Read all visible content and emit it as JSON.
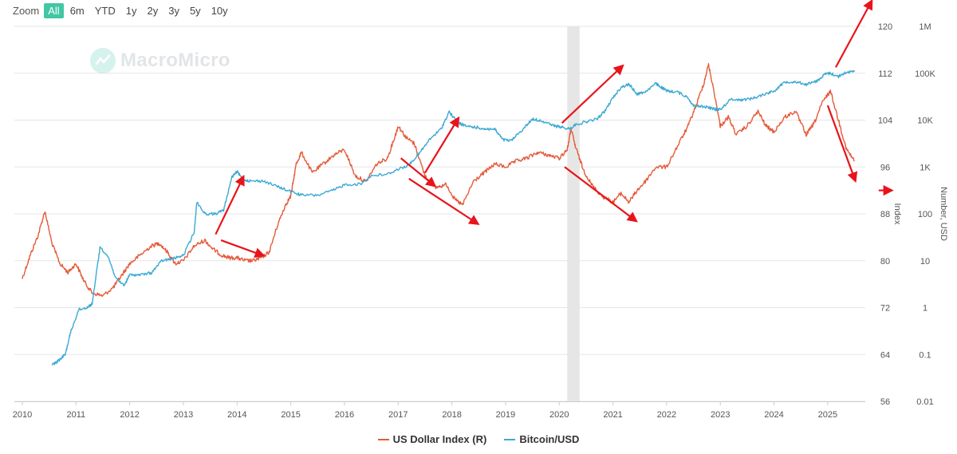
{
  "zoom": {
    "label": "Zoom",
    "buttons": [
      "All",
      "6m",
      "YTD",
      "1y",
      "2y",
      "3y",
      "5y",
      "10y"
    ],
    "selected": "All"
  },
  "watermark": {
    "text": "MacroMicro",
    "icon": "macromicro-logo-icon"
  },
  "colors": {
    "dxy": "#e45b3a",
    "btc": "#3ba9d3",
    "arrow": "#e8141b",
    "recession": "#e6e6e6",
    "active_zoom": "#41c7a5"
  },
  "legend": [
    {
      "label": "US Dollar Index (R)",
      "color": "#e45b3a"
    },
    {
      "label": "Bitcoin/USD",
      "color": "#3ba9d3"
    }
  ],
  "chart_data": {
    "type": "line",
    "x_axis": {
      "ticks": [
        "2010",
        "2011",
        "2012",
        "2013",
        "2014",
        "2015",
        "2016",
        "2017",
        "2018",
        "2019",
        "2020",
        "2021",
        "2022",
        "2023",
        "2024",
        "2025"
      ],
      "range": [
        2010.0,
        2025.7
      ]
    },
    "y_axis_index": {
      "label": "Index",
      "ticks": [
        "120",
        "112",
        "104",
        "96",
        "88",
        "80",
        "72",
        "64",
        "56"
      ],
      "range": [
        56,
        120
      ]
    },
    "y_axis_usd": {
      "label": "Number, USD",
      "scale": "log",
      "ticks": [
        "1M",
        "100K",
        "10K",
        "1K",
        "100",
        "10",
        "1",
        "0.1",
        "0.01"
      ],
      "range": [
        0.01,
        1000000
      ]
    },
    "shaded_period": {
      "label": "recession",
      "x_start": 2020.15,
      "x_end": 2020.38
    },
    "grid": true,
    "legend_position": "bottom-center",
    "series": [
      {
        "name": "US Dollar Index (R)",
        "axis": "index",
        "x": [
          2010.0,
          2010.15,
          2010.3,
          2010.42,
          2010.55,
          2010.7,
          2010.85,
          2011.0,
          2011.15,
          2011.3,
          2011.5,
          2011.7,
          2011.85,
          2012.0,
          2012.2,
          2012.4,
          2012.55,
          2012.7,
          2012.85,
          2013.0,
          2013.2,
          2013.4,
          2013.55,
          2013.7,
          2013.85,
          2014.0,
          2014.15,
          2014.3,
          2014.45,
          2014.6,
          2014.75,
          2014.9,
          2015.0,
          2015.1,
          2015.2,
          2015.4,
          2015.6,
          2015.8,
          2016.0,
          2016.2,
          2016.4,
          2016.6,
          2016.8,
          2016.95,
          2017.0,
          2017.15,
          2017.3,
          2017.5,
          2017.7,
          2017.9,
          2018.05,
          2018.2,
          2018.4,
          2018.6,
          2018.8,
          2019.0,
          2019.2,
          2019.4,
          2019.6,
          2019.8,
          2020.0,
          2020.15,
          2020.22,
          2020.3,
          2020.45,
          2020.6,
          2020.8,
          2021.0,
          2021.15,
          2021.3,
          2021.45,
          2021.6,
          2021.8,
          2022.0,
          2022.2,
          2022.4,
          2022.55,
          2022.7,
          2022.78,
          2022.9,
          2023.0,
          2023.15,
          2023.3,
          2023.5,
          2023.7,
          2023.85,
          2024.0,
          2024.2,
          2024.4,
          2024.6,
          2024.75,
          2024.9,
          2025.05,
          2025.2,
          2025.35,
          2025.5
        ],
        "y": [
          77.0,
          81.0,
          84.5,
          88.5,
          83.0,
          79.5,
          78.0,
          79.5,
          76.5,
          74.5,
          74.0,
          75.5,
          77.5,
          79.5,
          81.0,
          82.5,
          83.0,
          81.5,
          79.5,
          80.0,
          82.5,
          83.5,
          82.0,
          81.0,
          80.5,
          80.5,
          80.0,
          80.0,
          80.5,
          81.5,
          86.0,
          89.5,
          91.0,
          96.5,
          98.5,
          95.0,
          96.5,
          98.0,
          99.0,
          94.5,
          93.5,
          96.5,
          97.5,
          101.5,
          103.0,
          101.0,
          100.0,
          94.5,
          92.5,
          93.0,
          90.5,
          89.5,
          93.5,
          95.0,
          96.5,
          96.0,
          97.0,
          97.5,
          98.5,
          98.0,
          97.5,
          99.0,
          102.5,
          99.5,
          95.5,
          93.0,
          91.0,
          90.0,
          91.5,
          90.0,
          92.0,
          93.5,
          96.0,
          96.0,
          99.5,
          103.0,
          106.5,
          110.5,
          113.5,
          108.0,
          103.0,
          104.5,
          101.5,
          103.0,
          105.5,
          103.0,
          102.0,
          104.5,
          105.5,
          101.5,
          103.5,
          107.0,
          109.0,
          104.0,
          99.0,
          97.0
        ]
      },
      {
        "name": "Bitcoin/USD",
        "axis": "usd_log",
        "x": [
          2010.55,
          2010.65,
          2010.8,
          2010.9,
          2011.05,
          2011.2,
          2011.3,
          2011.4,
          2011.45,
          2011.6,
          2011.75,
          2011.9,
          2012.0,
          2012.2,
          2012.4,
          2012.6,
          2012.8,
          2013.0,
          2013.2,
          2013.25,
          2013.4,
          2013.6,
          2013.75,
          2013.9,
          2014.0,
          2014.1,
          2014.25,
          2014.5,
          2014.75,
          2015.0,
          2015.2,
          2015.5,
          2015.8,
          2016.0,
          2016.3,
          2016.5,
          2016.8,
          2017.0,
          2017.2,
          2017.4,
          2017.6,
          2017.8,
          2017.95,
          2018.1,
          2018.25,
          2018.45,
          2018.6,
          2018.8,
          2018.95,
          2019.1,
          2019.3,
          2019.5,
          2019.7,
          2019.9,
          2020.0,
          2020.2,
          2020.3,
          2020.5,
          2020.7,
          2020.85,
          2021.0,
          2021.15,
          2021.3,
          2021.45,
          2021.6,
          2021.8,
          2021.9,
          2022.0,
          2022.2,
          2022.4,
          2022.5,
          2022.7,
          2022.9,
          2023.0,
          2023.2,
          2023.4,
          2023.6,
          2023.8,
          2024.0,
          2024.2,
          2024.4,
          2024.6,
          2024.8,
          2024.95,
          2025.05,
          2025.2,
          2025.35,
          2025.5
        ],
        "y": [
          0.06,
          0.07,
          0.1,
          0.3,
          0.9,
          1.0,
          1.2,
          8.0,
          20.0,
          12.0,
          4.0,
          3.0,
          5.0,
          5.0,
          5.5,
          10.0,
          11.0,
          13.0,
          40.0,
          180.0,
          100.0,
          100.0,
          120.0,
          600.0,
          800.0,
          550.0,
          500.0,
          500.0,
          380.0,
          300.0,
          250.0,
          250.0,
          320.0,
          420.0,
          430.0,
          650.0,
          700.0,
          900.0,
          1100.0,
          2000.0,
          4000.0,
          6500.0,
          15000.0,
          9000.0,
          7500.0,
          7000.0,
          6500.0,
          6400.0,
          3800.0,
          3600.0,
          6000.0,
          10500.0,
          9500.0,
          7500.0,
          7200.0,
          6500.0,
          8000.0,
          9200.0,
          10500.0,
          15500.0,
          30000.0,
          50000.0,
          58000.0,
          36000.0,
          40000.0,
          60000.0,
          50000.0,
          42000.0,
          40000.0,
          30000.0,
          20000.0,
          19500.0,
          17000.0,
          17000.0,
          28000.0,
          27000.0,
          29000.0,
          35000.0,
          42000.0,
          65000.0,
          66000.0,
          58000.0,
          68000.0,
          95000.0,
          100000.0,
          85000.0,
          105000.0,
          108000.0
        ]
      }
    ],
    "annotations": [
      {
        "type": "arrow",
        "from": [
          2013.6,
          84.5
        ],
        "to": [
          2014.1,
          94.0
        ]
      },
      {
        "type": "arrow",
        "from": [
          2013.7,
          83.5
        ],
        "to": [
          2014.45,
          81.0
        ]
      },
      {
        "type": "arrow",
        "from": [
          2017.05,
          97.5
        ],
        "to": [
          2017.65,
          93.0
        ]
      },
      {
        "type": "arrow",
        "from": [
          2017.5,
          95.0
        ],
        "to": [
          2018.1,
          104.0
        ]
      },
      {
        "type": "arrow",
        "from": [
          2017.2,
          94.0
        ],
        "to": [
          2018.45,
          86.5
        ]
      },
      {
        "type": "arrow",
        "from": [
          2020.05,
          103.5
        ],
        "to": [
          2021.15,
          113.0
        ]
      },
      {
        "type": "arrow",
        "from": [
          2020.1,
          96.0
        ],
        "to": [
          2021.4,
          87.0
        ]
      },
      {
        "type": "arrow",
        "from": [
          2025.15,
          113.0
        ],
        "to": [
          2025.8,
          124.0
        ]
      },
      {
        "type": "arrow",
        "from": [
          2025.0,
          106.5
        ],
        "to": [
          2025.5,
          94.0
        ]
      },
      {
        "type": "arrow",
        "from": [
          2025.95,
          92.0
        ],
        "to": [
          2026.15,
          92.0
        ]
      }
    ]
  }
}
